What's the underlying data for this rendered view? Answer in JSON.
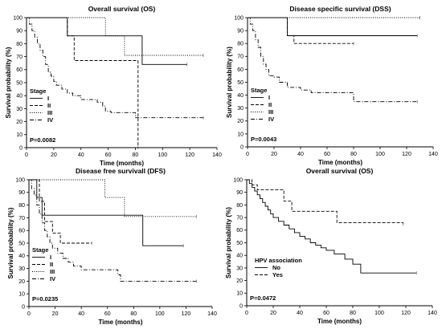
{
  "chart_data": [
    {
      "type": "line",
      "title": "Overall survival (OS)",
      "xlabel": "Time (months)",
      "ylabel": "Survival probability (%)",
      "xlim": [
        0,
        140
      ],
      "ylim": [
        0,
        100
      ],
      "xticks": [
        0,
        20,
        40,
        60,
        80,
        100,
        120,
        140
      ],
      "yticks": [
        0,
        10,
        20,
        30,
        40,
        50,
        60,
        70,
        80,
        90,
        100
      ],
      "legend_title": "Stage",
      "legend_position": "bottom-left",
      "pvalue": "P=0.0082",
      "series": [
        {
          "name": "I",
          "style": "solid",
          "x": [
            0,
            30,
            85,
            118
          ],
          "y": [
            100,
            86,
            64,
            64
          ]
        },
        {
          "name": "II",
          "style": "dashed",
          "x": [
            0,
            30,
            35,
            80,
            82
          ],
          "y": [
            100,
            86,
            67,
            67,
            0
          ]
        },
        {
          "name": "III",
          "style": "dotted",
          "x": [
            0,
            58,
            72,
            130
          ],
          "y": [
            100,
            86,
            71,
            71
          ]
        },
        {
          "name": "IV",
          "style": "dashdot",
          "x": [
            0,
            2,
            4,
            6,
            8,
            10,
            12,
            14,
            16,
            18,
            20,
            22,
            26,
            30,
            34,
            40,
            52,
            56,
            58,
            62,
            80,
            130
          ],
          "y": [
            100,
            95,
            90,
            85,
            80,
            75,
            70,
            64,
            58,
            55,
            51,
            48,
            45,
            42,
            40,
            37,
            35,
            32,
            28,
            27,
            23,
            23
          ]
        }
      ]
    },
    {
      "type": "line",
      "title": "Disease specific survival (DSS)",
      "xlabel": "Time (months)",
      "ylabel": "Survival probability (%)",
      "xlim": [
        0,
        140
      ],
      "ylim": [
        0,
        100
      ],
      "xticks": [
        0,
        20,
        40,
        60,
        80,
        100,
        120,
        140
      ],
      "yticks": [
        0,
        10,
        20,
        30,
        40,
        50,
        60,
        70,
        80,
        90,
        100
      ],
      "legend_title": "Stage",
      "legend_position": "bottom-left",
      "pvalue": "P=0.0043",
      "series": [
        {
          "name": "I",
          "style": "solid",
          "x": [
            0,
            30,
            128
          ],
          "y": [
            100,
            86,
            86
          ]
        },
        {
          "name": "II",
          "style": "dashed",
          "x": [
            0,
            30,
            35,
            80
          ],
          "y": [
            100,
            86,
            80,
            80
          ]
        },
        {
          "name": "III",
          "style": "dotted",
          "x": [
            0,
            130
          ],
          "y": [
            100,
            100
          ]
        },
        {
          "name": "IV",
          "style": "dashdot",
          "x": [
            0,
            2,
            4,
            6,
            8,
            10,
            12,
            14,
            16,
            20,
            24,
            30,
            40,
            48,
            78,
            80,
            128
          ],
          "y": [
            100,
            95,
            90,
            83,
            77,
            70,
            64,
            60,
            55,
            54,
            50,
            46,
            44,
            42,
            42,
            35,
            35
          ]
        }
      ]
    },
    {
      "type": "line",
      "title": "Disease free survivall (DFS)",
      "xlabel": "Time (months)",
      "ylabel": "Survival probability (%)",
      "xlim": [
        0,
        140
      ],
      "ylim": [
        0,
        100
      ],
      "xticks": [
        0,
        20,
        40,
        60,
        80,
        100,
        120,
        140
      ],
      "yticks": [
        0,
        10,
        20,
        30,
        40,
        50,
        60,
        70,
        80,
        90,
        100
      ],
      "legend_title": "Stage",
      "legend_position": "bottom-left",
      "pvalue": "P=0.0235",
      "series": [
        {
          "name": "I",
          "style": "solid",
          "x": [
            0,
            6,
            10,
            87,
            118
          ],
          "y": [
            100,
            86,
            72,
            48,
            48
          ]
        },
        {
          "name": "II",
          "style": "dashed",
          "x": [
            0,
            8,
            12,
            18,
            24,
            48
          ],
          "y": [
            100,
            83,
            67,
            58,
            50,
            50
          ]
        },
        {
          "name": "III",
          "style": "dotted",
          "x": [
            0,
            58,
            73,
            128
          ],
          "y": [
            100,
            86,
            71,
            71
          ]
        },
        {
          "name": "IV",
          "style": "dashdot",
          "x": [
            0,
            2,
            4,
            6,
            8,
            10,
            12,
            14,
            16,
            18,
            22,
            26,
            30,
            34,
            40,
            68,
            70,
            128
          ],
          "y": [
            100,
            93,
            88,
            80,
            73,
            66,
            60,
            55,
            50,
            46,
            42,
            38,
            35,
            32,
            29,
            25,
            20,
            20
          ]
        }
      ]
    },
    {
      "type": "line",
      "title": "Overall survival (OS)",
      "xlabel": "Time (months)",
      "ylabel": "Survival probability (%)",
      "xlim": [
        0,
        140
      ],
      "ylim": [
        0,
        100
      ],
      "xticks": [
        0,
        20,
        40,
        60,
        80,
        100,
        120,
        140
      ],
      "yticks": [
        0,
        10,
        20,
        30,
        40,
        50,
        60,
        70,
        80,
        90,
        100
      ],
      "legend_title": "HPV association",
      "legend_position": "bottom-right",
      "pvalue": "P=0.0472",
      "series": [
        {
          "name": "No",
          "style": "solid",
          "x": [
            0,
            2,
            4,
            6,
            8,
            10,
            12,
            14,
            16,
            18,
            20,
            24,
            28,
            32,
            36,
            40,
            44,
            48,
            52,
            56,
            60,
            66,
            74,
            80,
            86,
            128
          ],
          "y": [
            100,
            97,
            94,
            91,
            88,
            85,
            82,
            79,
            76,
            73,
            70,
            67,
            64,
            61,
            58,
            55,
            53,
            50,
            48,
            46,
            44,
            41,
            37,
            33,
            26,
            26
          ]
        },
        {
          "name": "Yes",
          "style": "dashed",
          "x": [
            0,
            4,
            8,
            10,
            28,
            34,
            56,
            60,
            68,
            118
          ],
          "y": [
            100,
            96,
            92,
            92,
            83,
            75,
            75,
            75,
            66,
            65
          ]
        }
      ]
    }
  ]
}
